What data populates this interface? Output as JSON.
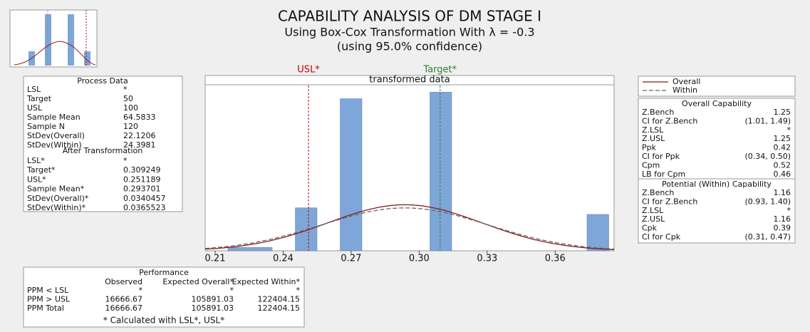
{
  "title": "CAPABILITY ANALYSIS OF DM STAGE I",
  "subtitle": "Using Box-Cox Transformation With λ = -0.3",
  "subtitle2": "(using 95.0% confidence)",
  "chart_data": {
    "type": "histogram",
    "panel_label": "transformed data",
    "bins": [
      0.2155,
      0.2254,
      0.2353,
      0.2452,
      0.2551,
      0.265,
      0.2749,
      0.2848,
      0.2947,
      0.3046,
      0.3145,
      0.3244,
      0.3343,
      0.3442,
      0.3541,
      0.364,
      0.3739,
      0.3838
    ],
    "values": [
      1,
      1,
      0,
      13,
      0,
      46,
      0,
      0,
      0,
      48,
      0,
      0,
      0,
      0,
      0,
      0,
      11
    ],
    "color": "#7ea6d8",
    "xlim": [
      0.2056,
      0.386
    ],
    "xticks": [
      0.21,
      0.24,
      0.27,
      {
        "value": 0.3,
        "label": "0.30"
      },
      0.33,
      0.36
    ],
    "ylim": [
      0,
      50
    ],
    "reference_lines": [
      {
        "label": "USL*",
        "value": 0.251189,
        "color": "#c00000"
      },
      {
        "label": "Target*",
        "value": 0.309249,
        "color": "#2e7d32"
      }
    ],
    "series": [
      {
        "name": "Overall",
        "color": "#8b1a1a",
        "mean": 0.293701,
        "stdev": 0.0340457,
        "dash": false
      },
      {
        "name": "Within",
        "color": "#666666",
        "mean": 0.293701,
        "stdev": 0.0365523,
        "dash": true
      }
    ]
  },
  "process_data": {
    "title": "Process Data",
    "rows": [
      [
        "LSL",
        "*"
      ],
      [
        "Target",
        50
      ],
      [
        "USL",
        100
      ],
      [
        "Sample Mean",
        64.5833
      ],
      [
        "Sample N",
        120
      ],
      [
        "StDev(Overall)",
        22.1206
      ],
      [
        "StDev(Within)",
        24.3981
      ]
    ],
    "after_title": "After Transformation",
    "after_rows": [
      [
        "LSL*",
        "*"
      ],
      [
        "Target*",
        0.309249
      ],
      [
        "USL*",
        0.251189
      ],
      [
        "Sample Mean*",
        0.293701
      ],
      [
        "StDev(Overall)*",
        0.0340457
      ],
      [
        "StDev(Within)*",
        0.0365523
      ]
    ]
  },
  "overall_capability": {
    "title": "Overall Capability",
    "rows": [
      [
        "Z.Bench",
        1.25
      ],
      [
        "CI for Z.Bench",
        "(1.01, 1.49)"
      ],
      [
        "Z.LSL",
        "*"
      ],
      [
        "Z.USL",
        1.25
      ],
      [
        "Ppk",
        0.42
      ],
      [
        "CI for Ppk",
        "(0.34, 0.50)"
      ],
      [
        "Cpm",
        0.52
      ],
      [
        "LB for Cpm",
        0.46
      ]
    ]
  },
  "potential_capability": {
    "title": "Potential (Within) Capability",
    "rows": [
      [
        "Z.Bench",
        1.16
      ],
      [
        "CI for Z.Bench",
        "(0.93, 1.40)"
      ],
      [
        "Z.LSL",
        "*"
      ],
      [
        "Z.USL",
        1.16
      ],
      [
        "Cpk",
        0.39
      ],
      [
        "CI for Cpk",
        "(0.31, 0.47)"
      ]
    ]
  },
  "performance": {
    "title": "Performance",
    "columns": [
      "Observed",
      "Expected Overall*",
      "Expected Within*"
    ],
    "rows": [
      [
        "PPM < LSL",
        "*",
        "*",
        "*"
      ],
      [
        "PPM > USL",
        16666.67,
        105891.03,
        122404.15
      ],
      [
        "PPM Total",
        16666.67,
        105891.03,
        122404.15
      ]
    ],
    "footnote": "* Calculated with LSL*, USL*"
  }
}
